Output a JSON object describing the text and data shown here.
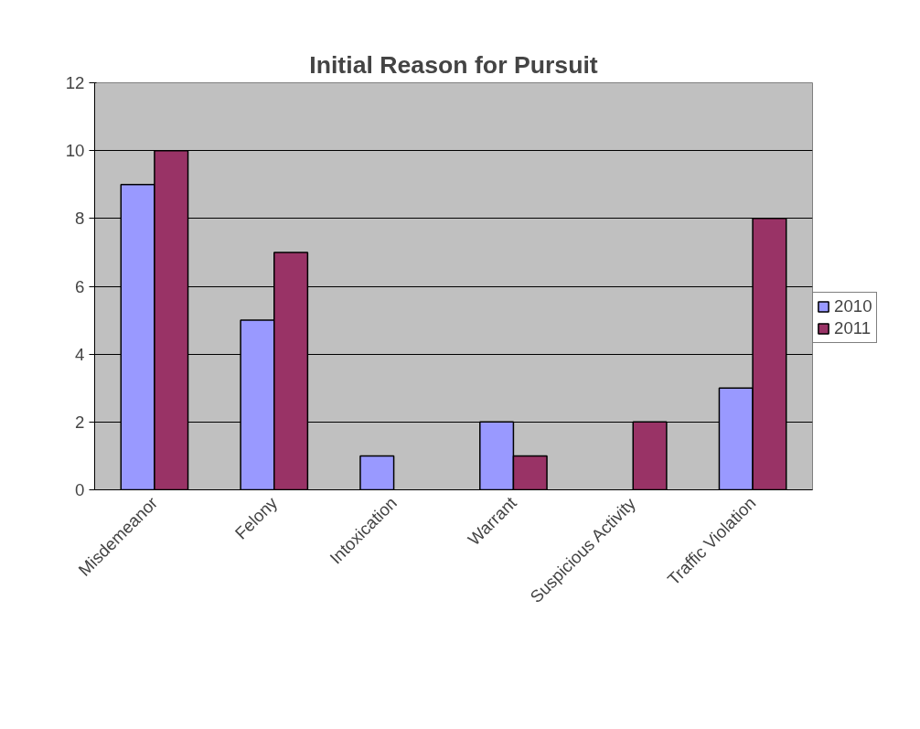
{
  "chart_data": {
    "type": "bar",
    "title": "Initial Reason for Pursuit",
    "categories": [
      "Misdemeanor",
      "Felony",
      "Intoxication",
      "Warrant",
      "Suspicious Activity",
      "Traffic Violation"
    ],
    "series": [
      {
        "name": "2010",
        "color": "#9999ff",
        "values": [
          9,
          5,
          1,
          2,
          0,
          3
        ]
      },
      {
        "name": "2011",
        "color": "#993366",
        "values": [
          10,
          7,
          0,
          1,
          2,
          8
        ]
      }
    ],
    "ylim": [
      0,
      12
    ],
    "yticks": [
      0,
      2,
      4,
      6,
      8,
      10,
      12
    ],
    "grid": "y",
    "legend": "right"
  }
}
